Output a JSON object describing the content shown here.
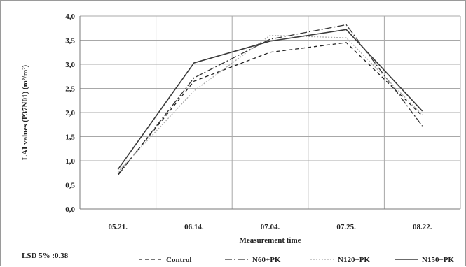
{
  "chart_data": {
    "type": "line",
    "categories": [
      "05.21.",
      "06.14.",
      "07.04.",
      "07.25.",
      "08.22."
    ],
    "series": [
      {
        "name": "Control",
        "values": [
          0.72,
          2.65,
          3.25,
          3.45,
          1.93
        ],
        "color": "#222222",
        "dash": "5,4",
        "width": 1.3
      },
      {
        "name": "N60+PK",
        "values": [
          0.7,
          2.72,
          3.52,
          3.82,
          1.72
        ],
        "color": "#333333",
        "dash": "10,3,2,3",
        "width": 1.3
      },
      {
        "name": "N120+PK",
        "values": [
          0.77,
          2.45,
          3.6,
          3.55,
          1.95
        ],
        "color": "#aaaaaa",
        "dash": "2,2",
        "width": 1.3
      },
      {
        "name": "N150+PK",
        "values": [
          0.82,
          3.03,
          3.48,
          3.72,
          2.03
        ],
        "color": "#3a3a3a",
        "dash": "",
        "width": 1.6
      }
    ],
    "xlabel": "Measurement time",
    "ylabel": "LAI values (P37N01) (m²/m²)",
    "ylim": [
      0,
      4
    ],
    "ytick_step": 0.5,
    "yticks": [
      "0,0",
      "0,5",
      "1,0",
      "1,5",
      "2,0",
      "2,5",
      "3,0",
      "3,5",
      "4,0"
    ],
    "grid": true,
    "legend_position": "bottom"
  },
  "note": "LSD 5% :0.38"
}
